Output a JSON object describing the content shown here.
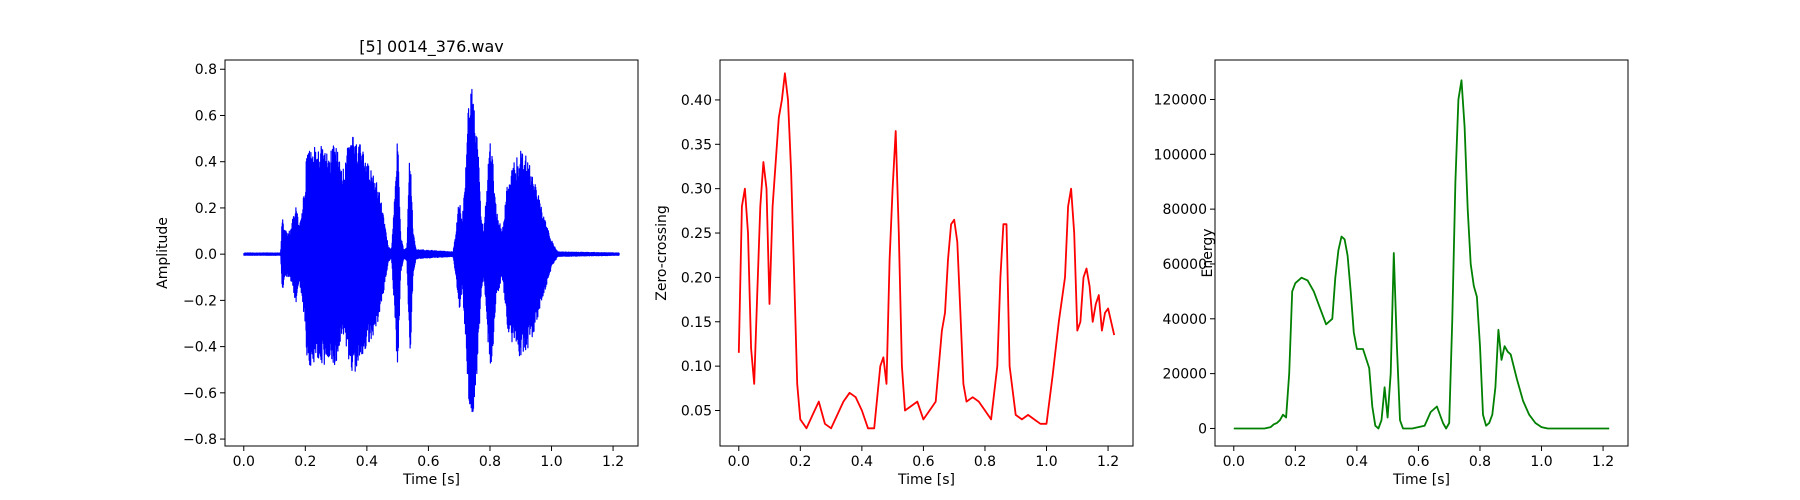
{
  "chart_data": [
    {
      "type": "line",
      "title": "[5] 0014_376.wav",
      "xlabel": "Time [s]",
      "ylabel": "Amplitude",
      "color": "#0000ff",
      "xlim": [
        -0.061,
        1.281
      ],
      "ylim": [
        -0.83,
        0.84
      ],
      "xticks": [
        0.0,
        0.2,
        0.4,
        0.6,
        0.8,
        1.0,
        1.2
      ],
      "yticks": [
        -0.8,
        -0.6,
        -0.4,
        -0.2,
        0.0,
        0.2,
        0.4,
        0.6,
        0.8
      ],
      "series": [
        {
          "envelope": [
            [
              0.0,
              0.005
            ],
            [
              0.12,
              0.005
            ],
            [
              0.125,
              0.17
            ],
            [
              0.135,
              0.1
            ],
            [
              0.15,
              0.1
            ],
            [
              0.17,
              0.22
            ],
            [
              0.18,
              0.12
            ],
            [
              0.2,
              0.3
            ],
            [
              0.205,
              0.48
            ],
            [
              0.22,
              0.5
            ],
            [
              0.24,
              0.45
            ],
            [
              0.26,
              0.5
            ],
            [
              0.28,
              0.45
            ],
            [
              0.3,
              0.49
            ],
            [
              0.32,
              0.35
            ],
            [
              0.34,
              0.48
            ],
            [
              0.36,
              0.53
            ],
            [
              0.38,
              0.47
            ],
            [
              0.4,
              0.4
            ],
            [
              0.42,
              0.35
            ],
            [
              0.44,
              0.28
            ],
            [
              0.46,
              0.12
            ],
            [
              0.47,
              0.03
            ],
            [
              0.48,
              0.02
            ],
            [
              0.49,
              0.25
            ],
            [
              0.5,
              0.52
            ],
            [
              0.51,
              0.08
            ],
            [
              0.52,
              0.02
            ],
            [
              0.53,
              0.03
            ],
            [
              0.54,
              0.48
            ],
            [
              0.55,
              0.1
            ],
            [
              0.56,
              0.02
            ],
            [
              0.68,
              0.01
            ],
            [
              0.69,
              0.1
            ],
            [
              0.7,
              0.25
            ],
            [
              0.71,
              0.15
            ],
            [
              0.72,
              0.35
            ],
            [
              0.73,
              0.65
            ],
            [
              0.74,
              0.76
            ],
            [
              0.75,
              0.62
            ],
            [
              0.76,
              0.5
            ],
            [
              0.77,
              0.2
            ],
            [
              0.78,
              0.1
            ],
            [
              0.8,
              0.52
            ],
            [
              0.81,
              0.4
            ],
            [
              0.82,
              0.2
            ],
            [
              0.84,
              0.1
            ],
            [
              0.86,
              0.35
            ],
            [
              0.88,
              0.4
            ],
            [
              0.9,
              0.45
            ],
            [
              0.92,
              0.42
            ],
            [
              0.94,
              0.35
            ],
            [
              0.96,
              0.25
            ],
            [
              0.98,
              0.15
            ],
            [
              1.0,
              0.06
            ],
            [
              1.02,
              0.01
            ],
            [
              1.22,
              0.005
            ]
          ]
        }
      ]
    },
    {
      "type": "line",
      "title": "",
      "xlabel": "Time [s]",
      "ylabel": "Zero-crossing",
      "color": "#ff0000",
      "xlim": [
        -0.061,
        1.281
      ],
      "ylim": [
        0.01,
        0.445
      ],
      "xticks": [
        0.0,
        0.2,
        0.4,
        0.6,
        0.8,
        1.0,
        1.2
      ],
      "yticks": [
        0.05,
        0.1,
        0.15,
        0.2,
        0.25,
        0.3,
        0.35,
        0.4
      ],
      "series": [
        {
          "x": [
            0.0,
            0.01,
            0.02,
            0.03,
            0.04,
            0.05,
            0.06,
            0.07,
            0.08,
            0.09,
            0.1,
            0.11,
            0.12,
            0.13,
            0.14,
            0.15,
            0.16,
            0.17,
            0.18,
            0.19,
            0.2,
            0.22,
            0.24,
            0.26,
            0.28,
            0.3,
            0.32,
            0.34,
            0.36,
            0.38,
            0.4,
            0.42,
            0.44,
            0.46,
            0.47,
            0.48,
            0.49,
            0.5,
            0.51,
            0.52,
            0.53,
            0.54,
            0.56,
            0.58,
            0.6,
            0.62,
            0.64,
            0.66,
            0.67,
            0.68,
            0.69,
            0.7,
            0.71,
            0.72,
            0.73,
            0.74,
            0.76,
            0.78,
            0.8,
            0.82,
            0.84,
            0.85,
            0.86,
            0.87,
            0.88,
            0.9,
            0.92,
            0.94,
            0.96,
            0.98,
            1.0,
            1.02,
            1.04,
            1.06,
            1.07,
            1.08,
            1.09,
            1.1,
            1.11,
            1.12,
            1.13,
            1.14,
            1.15,
            1.16,
            1.17,
            1.18,
            1.19,
            1.2,
            1.22
          ],
          "y": [
            0.115,
            0.28,
            0.3,
            0.25,
            0.12,
            0.08,
            0.18,
            0.28,
            0.33,
            0.3,
            0.17,
            0.28,
            0.33,
            0.38,
            0.4,
            0.43,
            0.4,
            0.32,
            0.2,
            0.08,
            0.04,
            0.03,
            0.045,
            0.06,
            0.035,
            0.03,
            0.045,
            0.06,
            0.07,
            0.065,
            0.05,
            0.03,
            0.03,
            0.1,
            0.11,
            0.08,
            0.22,
            0.3,
            0.365,
            0.25,
            0.1,
            0.05,
            0.055,
            0.06,
            0.04,
            0.05,
            0.06,
            0.14,
            0.16,
            0.22,
            0.26,
            0.265,
            0.24,
            0.16,
            0.08,
            0.06,
            0.065,
            0.06,
            0.05,
            0.04,
            0.1,
            0.2,
            0.26,
            0.26,
            0.1,
            0.045,
            0.04,
            0.045,
            0.04,
            0.035,
            0.035,
            0.09,
            0.15,
            0.2,
            0.28,
            0.3,
            0.25,
            0.14,
            0.15,
            0.2,
            0.21,
            0.19,
            0.15,
            0.17,
            0.18,
            0.14,
            0.16,
            0.165,
            0.135
          ]
        }
      ]
    },
    {
      "type": "line",
      "title": "",
      "xlabel": "Time [s]",
      "ylabel": "Energy",
      "color": "#008000",
      "xlim": [
        -0.061,
        1.281
      ],
      "ylim": [
        -6400,
        134400
      ],
      "xticks": [
        0.0,
        0.2,
        0.4,
        0.6,
        0.8,
        1.0,
        1.2
      ],
      "yticks": [
        0,
        20000,
        40000,
        60000,
        80000,
        100000,
        120000
      ],
      "series": [
        {
          "x": [
            0.0,
            0.1,
            0.12,
            0.13,
            0.14,
            0.15,
            0.16,
            0.17,
            0.18,
            0.19,
            0.2,
            0.22,
            0.24,
            0.26,
            0.28,
            0.3,
            0.32,
            0.33,
            0.34,
            0.35,
            0.36,
            0.37,
            0.38,
            0.39,
            0.4,
            0.42,
            0.44,
            0.45,
            0.46,
            0.47,
            0.48,
            0.49,
            0.5,
            0.51,
            0.52,
            0.53,
            0.54,
            0.55,
            0.56,
            0.58,
            0.6,
            0.62,
            0.64,
            0.66,
            0.68,
            0.69,
            0.7,
            0.71,
            0.72,
            0.73,
            0.74,
            0.75,
            0.76,
            0.77,
            0.78,
            0.79,
            0.8,
            0.81,
            0.82,
            0.83,
            0.84,
            0.85,
            0.86,
            0.87,
            0.88,
            0.89,
            0.9,
            0.92,
            0.94,
            0.96,
            0.98,
            1.0,
            1.02,
            1.05,
            1.1,
            1.22
          ],
          "y": [
            0,
            0,
            500,
            1500,
            2000,
            3000,
            5000,
            4000,
            20000,
            50000,
            53000,
            55000,
            54000,
            50000,
            44000,
            38000,
            40000,
            55000,
            65000,
            70000,
            69000,
            63000,
            50000,
            35000,
            29000,
            29000,
            22000,
            8000,
            1000,
            0,
            3000,
            15000,
            4000,
            20000,
            64000,
            30000,
            3000,
            0,
            0,
            0,
            500,
            1000,
            6000,
            8000,
            2000,
            0,
            2000,
            40000,
            90000,
            120000,
            127000,
            110000,
            80000,
            60000,
            52000,
            48000,
            30000,
            5000,
            1000,
            2000,
            5000,
            15000,
            36000,
            25000,
            30000,
            28000,
            27000,
            18000,
            10000,
            5000,
            2000,
            500,
            0,
            0,
            0,
            0
          ]
        }
      ]
    }
  ]
}
